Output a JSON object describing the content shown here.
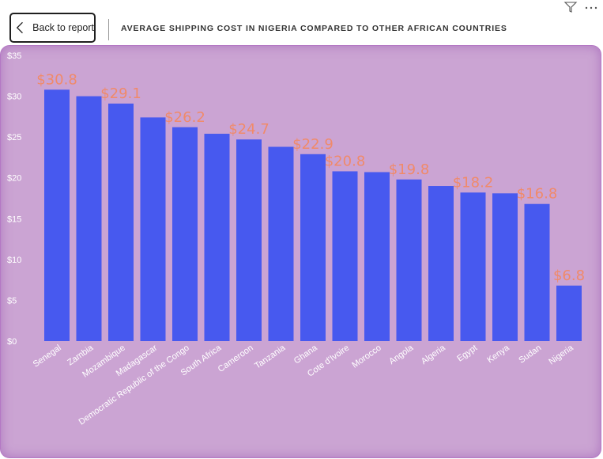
{
  "header": {
    "back_label": "Back to report",
    "title": "AVERAGE SHIPPING COST IN NIGERIA COMPARED TO OTHER AFRICAN COUNTRIES"
  },
  "icons": {
    "back": "chevron-left-icon",
    "filter": "filter-icon",
    "more": "more-options-icon"
  },
  "colors": {
    "bar": "#4759ef",
    "data_label": "#f08a6a",
    "plot_background": "#cba4d3"
  },
  "chart_data": {
    "type": "bar",
    "categories": [
      "Senegal",
      "Zambia",
      "Mozambique",
      "Madagascar",
      "Democratic Republic of the Congo",
      "South Africa",
      "Cameroon",
      "Tanzania",
      "Ghana",
      "Cote d'Ivoire",
      "Morocco",
      "Angola",
      "Algeria",
      "Egypt",
      "Kenya",
      "Sudan",
      "Nigeria"
    ],
    "values": [
      30.8,
      30.0,
      29.1,
      27.4,
      26.2,
      25.4,
      24.7,
      23.8,
      22.9,
      20.8,
      20.7,
      19.8,
      19.0,
      18.2,
      18.1,
      16.8,
      6.8
    ],
    "data_labels": [
      "$30.8",
      "",
      "$29.1",
      "",
      "$26.2",
      "",
      "$24.7",
      "",
      "$22.9",
      "$20.8",
      "",
      "$19.8",
      "",
      "$18.2",
      "",
      "$16.8",
      "$6.8"
    ],
    "y_ticks": [
      "$0",
      "$5",
      "$10",
      "$15",
      "$20",
      "$25",
      "$30",
      "$35"
    ],
    "ylim": [
      0,
      35
    ],
    "grid": false,
    "legend": "none"
  }
}
